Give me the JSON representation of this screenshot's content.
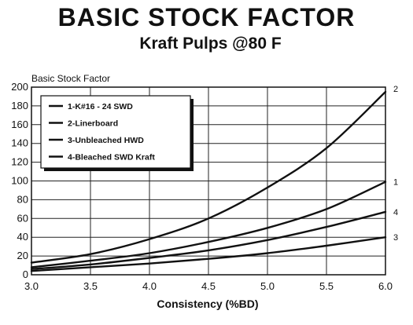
{
  "chart_data": {
    "type": "line",
    "title": "BASIC STOCK FACTOR",
    "subtitle": "Kraft Pulps @80 F",
    "ylabel": "Basic Stock Factor",
    "xlabel": "Consistency (%BD)",
    "xlim": [
      3.0,
      6.0
    ],
    "ylim": [
      0,
      200
    ],
    "xticks": [
      "3.0",
      "3.5",
      "4.0",
      "4.5",
      "5.0",
      "5.5",
      "6.0"
    ],
    "yticks": [
      "0",
      "20",
      "40",
      "60",
      "80",
      "100",
      "120",
      "140",
      "160",
      "180",
      "200"
    ],
    "grid": true,
    "legend_position": "top-left",
    "series": [
      {
        "name": "1-K#16 - 24 SWD",
        "end_label": "1",
        "x": [
          3.0,
          3.5,
          4.0,
          4.5,
          5.0,
          5.5,
          6.0
        ],
        "y": [
          8,
          15,
          23,
          35,
          50,
          70,
          99
        ]
      },
      {
        "name": "2-Linerboard",
        "end_label": "2",
        "x": [
          3.0,
          3.5,
          4.0,
          4.5,
          5.0,
          5.5,
          6.0
        ],
        "y": [
          13,
          22,
          38,
          60,
          93,
          135,
          195
        ]
      },
      {
        "name": "3-Unbleached HWD",
        "end_label": "3",
        "x": [
          3.0,
          3.5,
          4.0,
          4.5,
          5.0,
          5.5,
          6.0
        ],
        "y": [
          4,
          8,
          12,
          17,
          23,
          31,
          40
        ]
      },
      {
        "name": "4-Bleached SWD Kraft",
        "end_label": "4",
        "x": [
          3.0,
          3.5,
          4.0,
          4.5,
          5.0,
          5.5,
          6.0
        ],
        "y": [
          6,
          11,
          18,
          26,
          37,
          51,
          67
        ]
      }
    ]
  }
}
